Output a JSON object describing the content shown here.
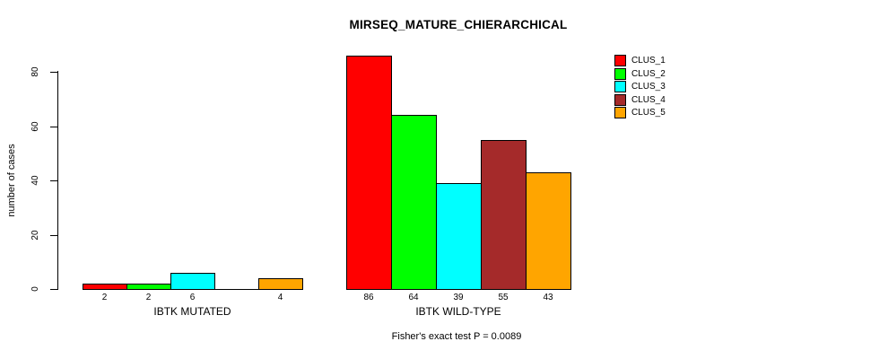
{
  "chart_data": {
    "type": "bar",
    "title": "MIRSEQ_MATURE_CHIERARCHICAL",
    "ylabel": "number of cases",
    "xlabel": "",
    "footnote": "Fisher's exact test P = 0.0089",
    "categories": [
      "IBTK MUTATED",
      "IBTK WILD-TYPE"
    ],
    "series": [
      {
        "name": "CLUS_1",
        "color": "#FF0000",
        "values": [
          2,
          86
        ]
      },
      {
        "name": "CLUS_2",
        "color": "#00FF00",
        "values": [
          2,
          64
        ]
      },
      {
        "name": "CLUS_3",
        "color": "#00FFFF",
        "values": [
          6,
          39
        ]
      },
      {
        "name": "CLUS_4",
        "color": "#A52A2A",
        "values": [
          null,
          55
        ]
      },
      {
        "name": "CLUS_5",
        "color": "#FFA500",
        "values": [
          4,
          43
        ]
      }
    ],
    "yticks": [
      0,
      20,
      40,
      60,
      80
    ],
    "ylim": [
      0,
      86
    ],
    "grid": false,
    "bar_value_labels_shown": true,
    "legend_position": "top-right",
    "axis_color": "#000000",
    "bar_border_color": "#000000",
    "background_color": "#FFFFFF"
  }
}
